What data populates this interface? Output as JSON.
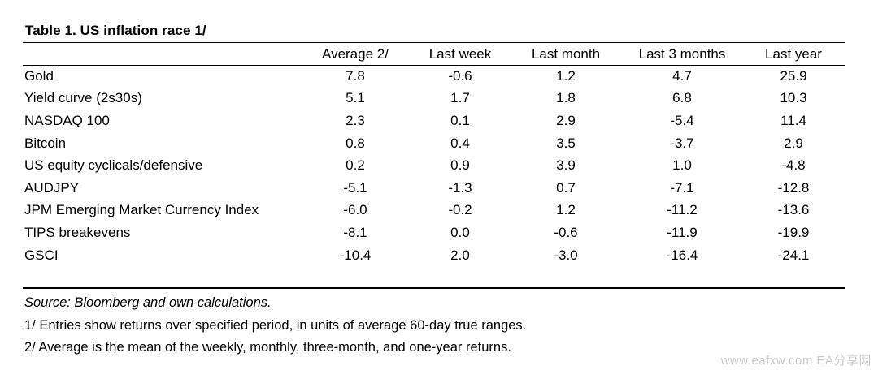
{
  "title": "Table 1. US inflation race 1/",
  "table": {
    "headers": [
      "",
      "Average 2/",
      "Last week",
      "Last month",
      "Last 3 months",
      "Last year"
    ],
    "rows": [
      {
        "label": "Gold",
        "values": [
          "7.8",
          "-0.6",
          "1.2",
          "4.7",
          "25.9"
        ]
      },
      {
        "label": "Yield curve (2s30s)",
        "values": [
          "5.1",
          "1.7",
          "1.8",
          "6.8",
          "10.3"
        ]
      },
      {
        "label": "NASDAQ 100",
        "values": [
          "2.3",
          "0.1",
          "2.9",
          "-5.4",
          "11.4"
        ]
      },
      {
        "label": "Bitcoin",
        "values": [
          "0.8",
          "0.4",
          "3.5",
          "-3.7",
          "2.9"
        ]
      },
      {
        "label": "US equity cyclicals/defensive",
        "values": [
          "0.2",
          "0.9",
          "3.9",
          "1.0",
          "-4.8"
        ]
      },
      {
        "label": "AUDJPY",
        "values": [
          "-5.1",
          "-1.3",
          "0.7",
          "-7.1",
          "-12.8"
        ]
      },
      {
        "label": "JPM Emerging Market Currency Index",
        "values": [
          "-6.0",
          "-0.2",
          "1.2",
          "-11.2",
          "-13.6"
        ]
      },
      {
        "label": "TIPS breakevens",
        "values": [
          "-8.1",
          "0.0",
          "-0.6",
          "-11.9",
          "-19.9"
        ]
      },
      {
        "label": "GSCI",
        "values": [
          "-10.4",
          "2.0",
          "-3.0",
          "-16.4",
          "-24.1"
        ]
      }
    ]
  },
  "notes": {
    "source": "Source: Bloomberg and own calculations.",
    "note1": "1/ Entries show returns over specified period, in units of average 60-day true ranges.",
    "note2": "2/ Average is the mean of the weekly, monthly, three-month, and one-year returns."
  },
  "watermark": "www.eafxw.com  EA分享网"
}
